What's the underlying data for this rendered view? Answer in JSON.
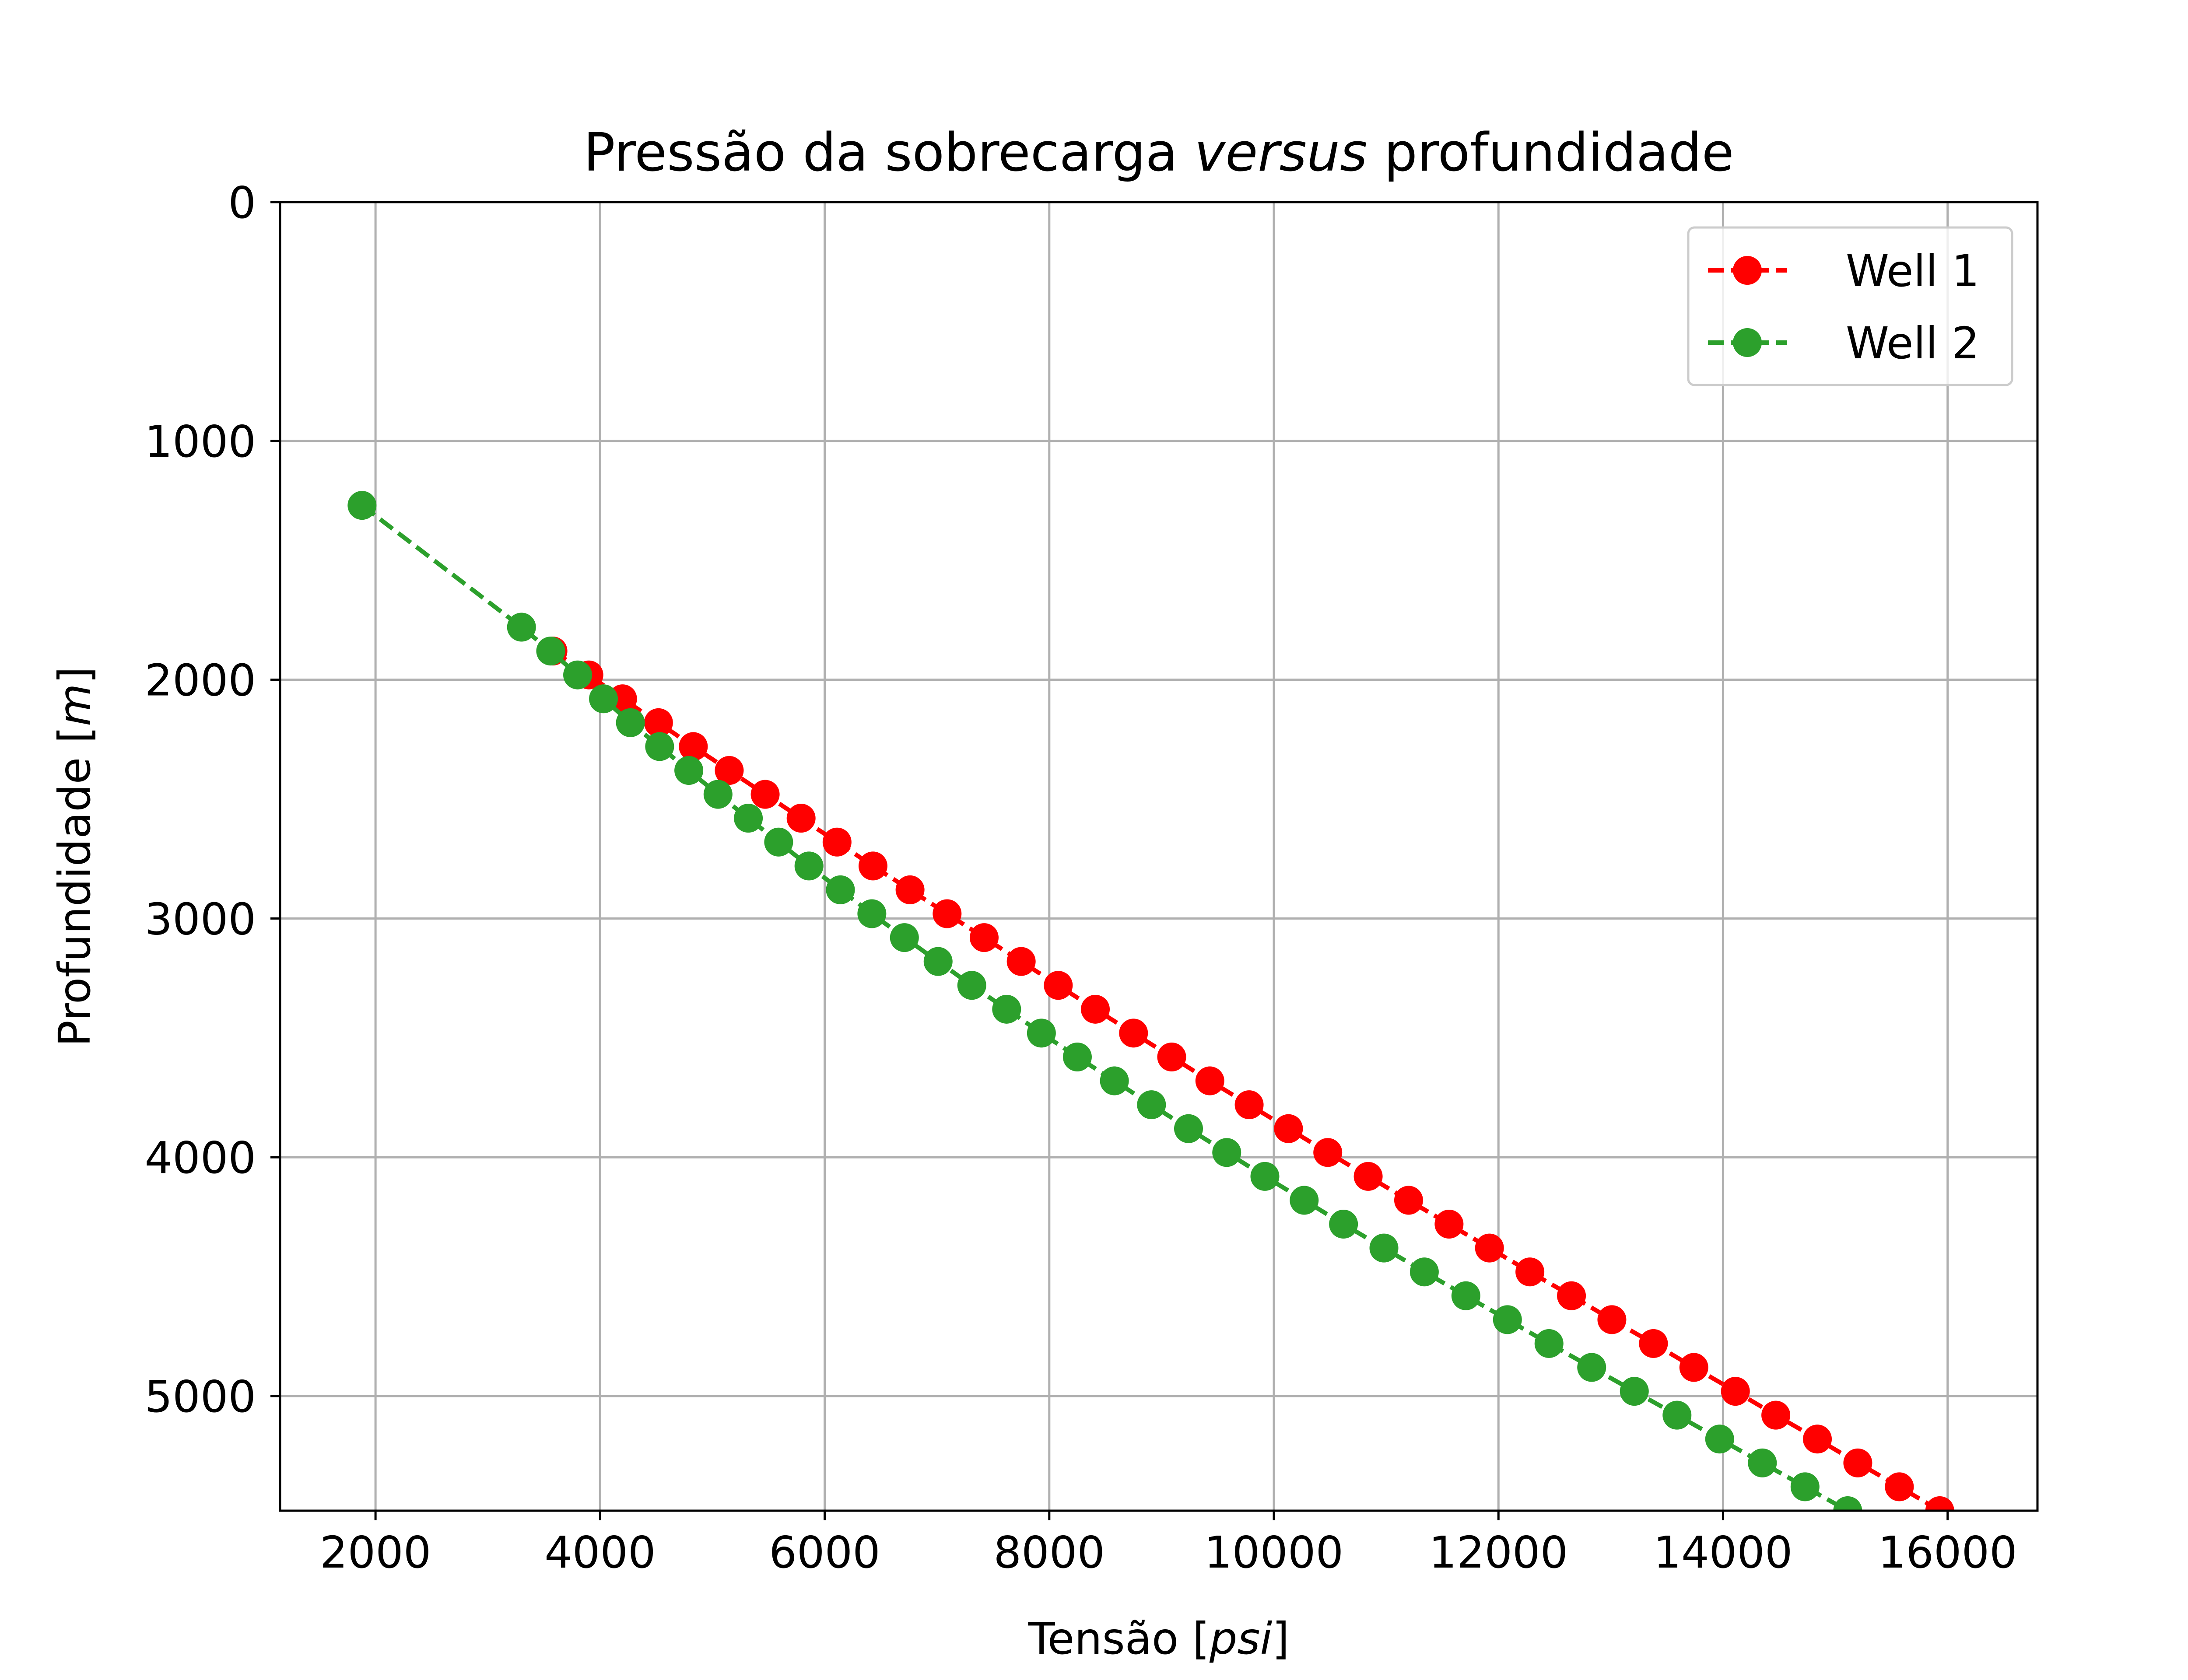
{
  "chart_data": {
    "type": "line",
    "title_parts": [
      {
        "text": "Pressão da sobrecarga ",
        "italic": false
      },
      {
        "text": "versus",
        "italic": true
      },
      {
        "text": " profundidade",
        "italic": false
      }
    ],
    "xlabel_parts": [
      {
        "text": "Tensão [",
        "italic": false
      },
      {
        "text": "psi",
        "italic": true
      },
      {
        "text": "]",
        "italic": false
      }
    ],
    "ylabel_parts": [
      {
        "text": "Profundidade [",
        "italic": false
      },
      {
        "text": "m",
        "italic": true
      },
      {
        "text": "]",
        "italic": false
      }
    ],
    "xlim": [
      1150,
      16800
    ],
    "ylim": [
      5480,
      0
    ],
    "y_inverted": true,
    "xticks": [
      2000,
      4000,
      6000,
      8000,
      10000,
      12000,
      14000,
      16000
    ],
    "yticks": [
      0,
      1000,
      2000,
      3000,
      4000,
      5000
    ],
    "grid": true,
    "legend_position": "upper right",
    "series": [
      {
        "name": "Well 1",
        "color": "#ff0000",
        "line_style": "dashed",
        "marker": "circle",
        "x": [
          3580,
          3900,
          4200,
          4520,
          4830,
          5150,
          5470,
          5790,
          6110,
          6430,
          6760,
          7090,
          7420,
          7750,
          8080,
          8410,
          8750,
          9090,
          9430,
          9780,
          10130,
          10480,
          10840,
          11200,
          11560,
          11920,
          12280,
          12650,
          13010,
          13380,
          13740,
          14110,
          14470,
          14840,
          15200,
          15570,
          15930
        ],
        "y": [
          1880,
          1980,
          2080,
          2180,
          2280,
          2380,
          2480,
          2580,
          2680,
          2780,
          2880,
          2980,
          3080,
          3180,
          3280,
          3380,
          3480,
          3580,
          3680,
          3780,
          3880,
          3980,
          4080,
          4180,
          4280,
          4380,
          4480,
          4580,
          4680,
          4780,
          4880,
          4980,
          5080,
          5180,
          5280,
          5380,
          5480
        ]
      },
      {
        "name": "Well 2",
        "color": "#2ca02c",
        "line_style": "dashed",
        "marker": "circle",
        "x": [
          1880,
          3300,
          3560,
          3800,
          4030,
          4270,
          4530,
          4790,
          5050,
          5320,
          5590,
          5860,
          6140,
          6420,
          6710,
          7010,
          7310,
          7620,
          7930,
          8250,
          8580,
          8910,
          9240,
          9580,
          9920,
          10270,
          10620,
          10980,
          11340,
          11710,
          12080,
          12450,
          12830,
          13210,
          13590,
          13970,
          14350,
          14730,
          15110
        ],
        "y": [
          1270,
          1780,
          1880,
          1980,
          2080,
          2180,
          2280,
          2380,
          2480,
          2580,
          2680,
          2780,
          2880,
          2980,
          3080,
          3180,
          3280,
          3380,
          3480,
          3580,
          3680,
          3780,
          3880,
          3980,
          4080,
          4180,
          4280,
          4380,
          4480,
          4580,
          4680,
          4780,
          4880,
          4980,
          5080,
          5180,
          5280,
          5380,
          5480
        ]
      }
    ]
  }
}
